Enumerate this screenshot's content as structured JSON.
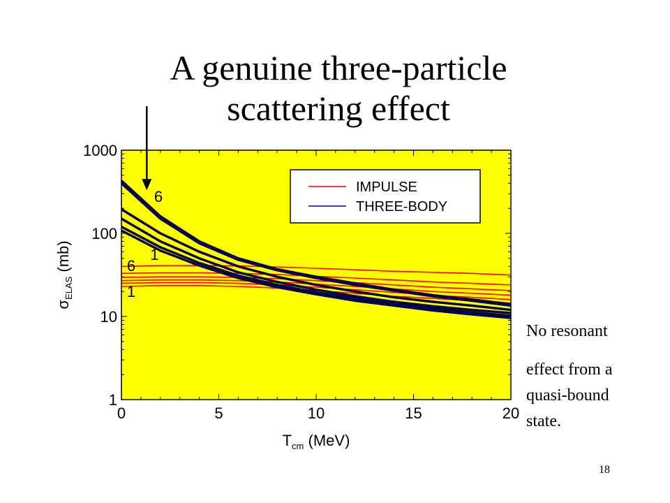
{
  "slide": {
    "title_line1": "A genuine three-particle",
    "title_line2": "scattering effect",
    "note_line1": "No resonant",
    "note_line2": "effect from a",
    "note_line3": "quasi-bound",
    "note_line4": "state.",
    "slide_number": "18"
  },
  "colors": {
    "plot_background": "#ffff00",
    "impulse": "#ff0000",
    "three_body": "#0000aa",
    "curve_outline": "#000000"
  },
  "chart_data": {
    "type": "line",
    "xlabel": {
      "main": "T",
      "sub": "cm",
      "rest": "(MeV)"
    },
    "ylabel": {
      "main": "σ",
      "sub": "ELAS",
      "rest": "(mb)"
    },
    "xlim": [
      0,
      20
    ],
    "ylim": [
      1,
      1000
    ],
    "yscale": "log",
    "x_ticks": [
      0,
      5,
      10,
      15,
      20
    ],
    "x_tick_labels": [
      "0",
      "5",
      "10",
      "15",
      "20"
    ],
    "y_ticks": [
      1,
      10,
      100,
      1000
    ],
    "y_tick_labels": [
      "1",
      "10",
      "100",
      "1000"
    ],
    "grid": false,
    "legend": {
      "placement": "top-right",
      "entries": [
        {
          "label": "IMPULSE",
          "color": "#ff0000"
        },
        {
          "label": "THREE-BODY",
          "color": "#0000aa"
        }
      ]
    },
    "curve_labels": [
      {
        "text": "6",
        "x": 1.9,
        "y": 280
      },
      {
        "text": "1",
        "x": 1.7,
        "y": 56
      },
      {
        "text": "6",
        "x": 0.5,
        "y": 41
      },
      {
        "text": "1",
        "x": 0.5,
        "y": 20
      }
    ],
    "arrow": {
      "x": 1.3,
      "y_start": 2500,
      "y_end": 330
    },
    "x": [
      0,
      2,
      4,
      6,
      8,
      10,
      12,
      14,
      16,
      18,
      20
    ],
    "series": [
      {
        "group": "IMPULSE",
        "values": [
          40,
          41,
          41,
          40.5,
          39.5,
          38,
          36.5,
          35,
          34,
          33,
          31.5
        ]
      },
      {
        "group": "IMPULSE",
        "values": [
          33,
          33.5,
          33.5,
          33,
          32,
          30.5,
          29,
          27.5,
          26,
          25,
          24
        ]
      },
      {
        "group": "IMPULSE",
        "values": [
          29.5,
          30,
          30,
          29.5,
          28.5,
          27,
          25.5,
          24,
          22.5,
          21.5,
          20.5
        ]
      },
      {
        "group": "IMPULSE",
        "values": [
          27,
          27.5,
          27.5,
          27,
          26,
          24.5,
          23,
          21.5,
          20,
          19,
          18
        ]
      },
      {
        "group": "IMPULSE",
        "values": [
          25,
          25.5,
          25.5,
          25,
          24,
          22.5,
          21,
          19.5,
          18,
          17,
          16
        ]
      },
      {
        "group": "IMPULSE",
        "values": [
          23,
          23.5,
          23.5,
          23,
          22,
          20.5,
          19,
          17.5,
          16.5,
          15.5,
          14.5
        ]
      },
      {
        "group": "THREE-BODY",
        "values": [
          430,
          160,
          80,
          50,
          37,
          30,
          25,
          21,
          18,
          16,
          14
        ]
      },
      {
        "group": "THREE-BODY",
        "values": [
          400,
          150,
          76,
          48,
          36,
          29,
          24,
          20.5,
          17.5,
          15.5,
          13.5
        ]
      },
      {
        "group": "THREE-BODY",
        "values": [
          195,
          100,
          60,
          40,
          30,
          24,
          20,
          17,
          15,
          13.5,
          12
        ]
      },
      {
        "group": "THREE-BODY",
        "values": [
          150,
          80,
          50,
          34,
          26,
          21,
          17.5,
          15,
          13.3,
          12,
          11
        ]
      },
      {
        "group": "THREE-BODY",
        "values": [
          120,
          68,
          44,
          31,
          24,
          19.5,
          16.5,
          14.3,
          12.5,
          11.2,
          10.2
        ]
      },
      {
        "group": "THREE-BODY",
        "values": [
          108,
          62,
          41,
          29,
          22.5,
          18.5,
          15.5,
          13.5,
          11.8,
          10.6,
          9.6
        ]
      }
    ]
  }
}
